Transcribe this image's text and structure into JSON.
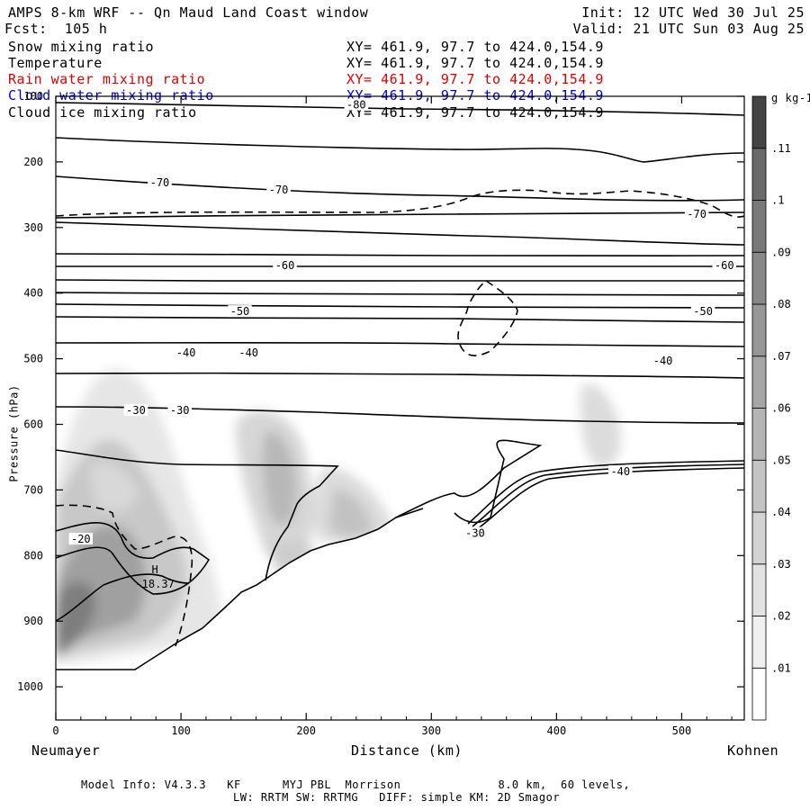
{
  "header": {
    "title": "AMPS 8-km WRF -- Qn Maud Land Coast window",
    "forecast": "Fcst:  105 h",
    "init": "Init: 12 UTC Wed 30 Jul 25",
    "valid": "Valid: 21 UTC Sun 03 Aug 25"
  },
  "fields": [
    {
      "name": "Snow mixing ratio",
      "xy": "XY= 461.9, 97.7 to 424.0,154.9",
      "color": "#000000"
    },
    {
      "name": "Temperature",
      "xy": "XY= 461.9, 97.7 to 424.0,154.9",
      "color": "#000000"
    },
    {
      "name": "Rain water mixing ratio",
      "xy": "XY= 461.9, 97.7 to 424.0,154.9",
      "color": "#e00000"
    },
    {
      "name": "Cloud water mixing ratio",
      "xy": "XY= 461.9, 97.7 to 424.0,154.9",
      "color": "#0000d0"
    },
    {
      "name": "Cloud ice mixing ratio",
      "xy": "XY= 461.9, 97.7 to 424.0,154.9",
      "color": "#000000"
    }
  ],
  "footer": {
    "line1": "Model Info: V4.3.3   KF      MYJ PBL  Morrison              8.0 km,  60 levels,",
    "line2": "LW: RRTM SW: RRTMG   DIFF: simple KM: 2D Smagor"
  },
  "chart_data": {
    "type": "cross-section",
    "xlabel": "Distance (km)",
    "ylabel": "Pressure (hPa)",
    "x_start_label": "Neumayer",
    "x_end_label": "Kohnen",
    "xlim": [
      0,
      550
    ],
    "ylim": [
      1050,
      100
    ],
    "x_ticks": [
      0,
      100,
      200,
      300,
      400,
      500
    ],
    "y_ticks": [
      100,
      200,
      300,
      400,
      500,
      600,
      700,
      800,
      900,
      1000
    ],
    "colorbar": {
      "unit": "g kg-1",
      "levels": [
        ".01",
        ".02",
        ".03",
        ".04",
        ".05",
        ".06",
        ".07",
        ".08",
        ".09",
        ".1",
        ".11"
      ],
      "colors": [
        "#ffffff",
        "#f0f0f0",
        "#e2e2e2",
        "#d3d3d3",
        "#c4c4c4",
        "#b5b5b5",
        "#a6a6a6",
        "#979797",
        "#888888",
        "#797979",
        "#6a6a6a",
        "#444444"
      ]
    },
    "temperature_labels": [
      {
        "text": "-80",
        "x": 240,
        "p": 113
      },
      {
        "text": "-70",
        "x": 83,
        "p": 232
      },
      {
        "text": "-70",
        "x": 178,
        "p": 243
      },
      {
        "text": "-70",
        "x": 512,
        "p": 280
      },
      {
        "text": "-60",
        "x": 183,
        "p": 358
      },
      {
        "text": "-60",
        "x": 534,
        "p": 358
      },
      {
        "text": "-50",
        "x": 147,
        "p": 428
      },
      {
        "text": "-50",
        "x": 517,
        "p": 428
      },
      {
        "text": "-40",
        "x": 104,
        "p": 491
      },
      {
        "text": "-40",
        "x": 154,
        "p": 491
      },
      {
        "text": "-40",
        "x": 485,
        "p": 503
      },
      {
        "text": "-40",
        "x": 451,
        "p": 672
      },
      {
        "text": "-30",
        "x": 64,
        "p": 579
      },
      {
        "text": "-30",
        "x": 99,
        "p": 579
      },
      {
        "text": "-30",
        "x": 335,
        "p": 766
      },
      {
        "text": "-20",
        "x": 20,
        "p": 775
      }
    ],
    "max_label": {
      "marker": "H",
      "value": "-18.37",
      "x": 72,
      "p": 838
    }
  }
}
